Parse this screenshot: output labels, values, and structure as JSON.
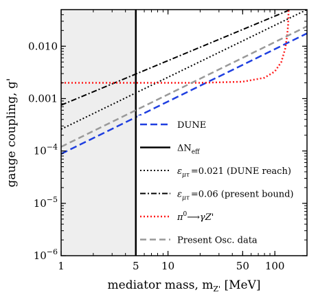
{
  "chart_data": {
    "type": "line",
    "x_scale": "log",
    "y_scale": "log",
    "xlabel": "mediator mass, m",
    "xlabel_sub": "Z'",
    "xlabel_unit": " [MeV]",
    "ylabel": "gauge coupling, g'",
    "xlim": [
      1,
      200
    ],
    "ylim": [
      1e-06,
      0.05
    ],
    "x_ticks": [
      {
        "value": 1,
        "label": "1"
      },
      {
        "value": 5,
        "label": "5"
      },
      {
        "value": 10,
        "label": "10"
      },
      {
        "value": 50,
        "label": "50"
      },
      {
        "value": 100,
        "label": "100"
      }
    ],
    "y_ticks": [
      {
        "value": 1e-06,
        "base": "10",
        "exp": "−6"
      },
      {
        "value": 1e-05,
        "base": "10",
        "exp": "−5"
      },
      {
        "value": 0.0001,
        "base": "10",
        "exp": "−4"
      },
      {
        "value": 0.001,
        "label": "0.001"
      },
      {
        "value": 0.01,
        "label": "0.010"
      }
    ],
    "shaded_region": {
      "x": [
        1,
        5
      ],
      "color": "#eeeeee"
    },
    "legend_position": "bottom-right",
    "series": [
      {
        "id": "dune",
        "legend": "DUNE",
        "color": "#1f3fe0",
        "dash": "10,5",
        "width": 2.5,
        "points": [
          [
            1,
            8.8e-05
          ],
          [
            200,
            0.0176
          ]
        ]
      },
      {
        "id": "dneff",
        "legend": "ΔN",
        "legend_sub": "eff",
        "color": "#000000",
        "dash": "",
        "width": 2.5,
        "points": [
          [
            5,
            1e-06
          ],
          [
            5,
            0.05
          ]
        ]
      },
      {
        "id": "eps_dune",
        "legend": "=0.021 (DUNE reach)",
        "legend_eps": "ε",
        "legend_eps_sub": "μτ",
        "color": "#000000",
        "dash": "2,3",
        "width": 2,
        "points": [
          [
            1,
            0.00026
          ],
          [
            200,
            0.05
          ]
        ]
      },
      {
        "id": "eps_present",
        "legend": "=0.06 (present bound)",
        "legend_eps": "ε",
        "legend_eps_sub": "μτ",
        "color": "#000000",
        "dash": "8,3,2,3",
        "width": 2,
        "points": [
          [
            1,
            0.00075
          ],
          [
            140,
            0.05
          ]
        ]
      },
      {
        "id": "pion",
        "legend": "π",
        "legend_sup": "0",
        "legend_rest": "⟶γZ'",
        "color": "#ff1a1a",
        "dash": "2,3",
        "width": 2.5,
        "points": [
          [
            1,
            0.002
          ],
          [
            20,
            0.002
          ],
          [
            50,
            0.0021
          ],
          [
            80,
            0.0025
          ],
          [
            100,
            0.0033
          ],
          [
            115,
            0.005
          ],
          [
            125,
            0.009
          ],
          [
            130,
            0.015
          ],
          [
            133,
            0.025
          ],
          [
            134.5,
            0.05
          ]
        ]
      },
      {
        "id": "osc",
        "legend": "Present Osc. data",
        "color": "#999999",
        "dash": "9,5",
        "width": 2.5,
        "points": [
          [
            1,
            0.00012
          ],
          [
            200,
            0.024
          ]
        ]
      }
    ]
  }
}
